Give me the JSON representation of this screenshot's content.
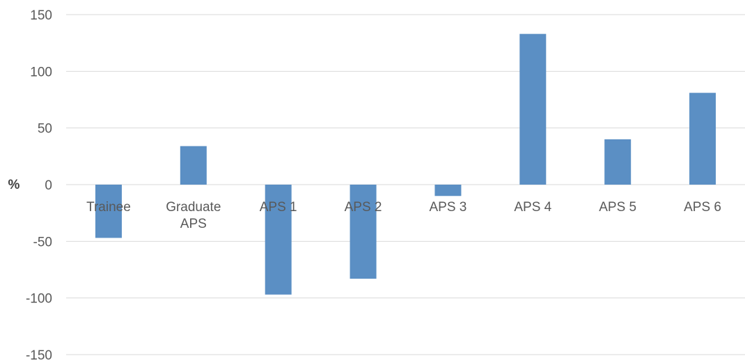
{
  "chart_data": {
    "type": "bar",
    "categories": [
      [
        "Trainee"
      ],
      [
        "Graduate",
        "APS"
      ],
      [
        "APS 1"
      ],
      [
        "APS 2"
      ],
      [
        "APS 3"
      ],
      [
        "APS 4"
      ],
      [
        "APS 5"
      ],
      [
        "APS 6"
      ]
    ],
    "values": [
      -47,
      34,
      -97,
      -83,
      -10,
      133,
      40,
      81
    ],
    "ylabel": "%",
    "ylim": [
      -150,
      150
    ],
    "yticks": [
      150,
      100,
      50,
      0,
      -50,
      -100,
      -150
    ],
    "grid": true,
    "colors": {
      "bar": "#5b8fc4",
      "grid": "#d9d9d9",
      "text": "#595959"
    }
  }
}
